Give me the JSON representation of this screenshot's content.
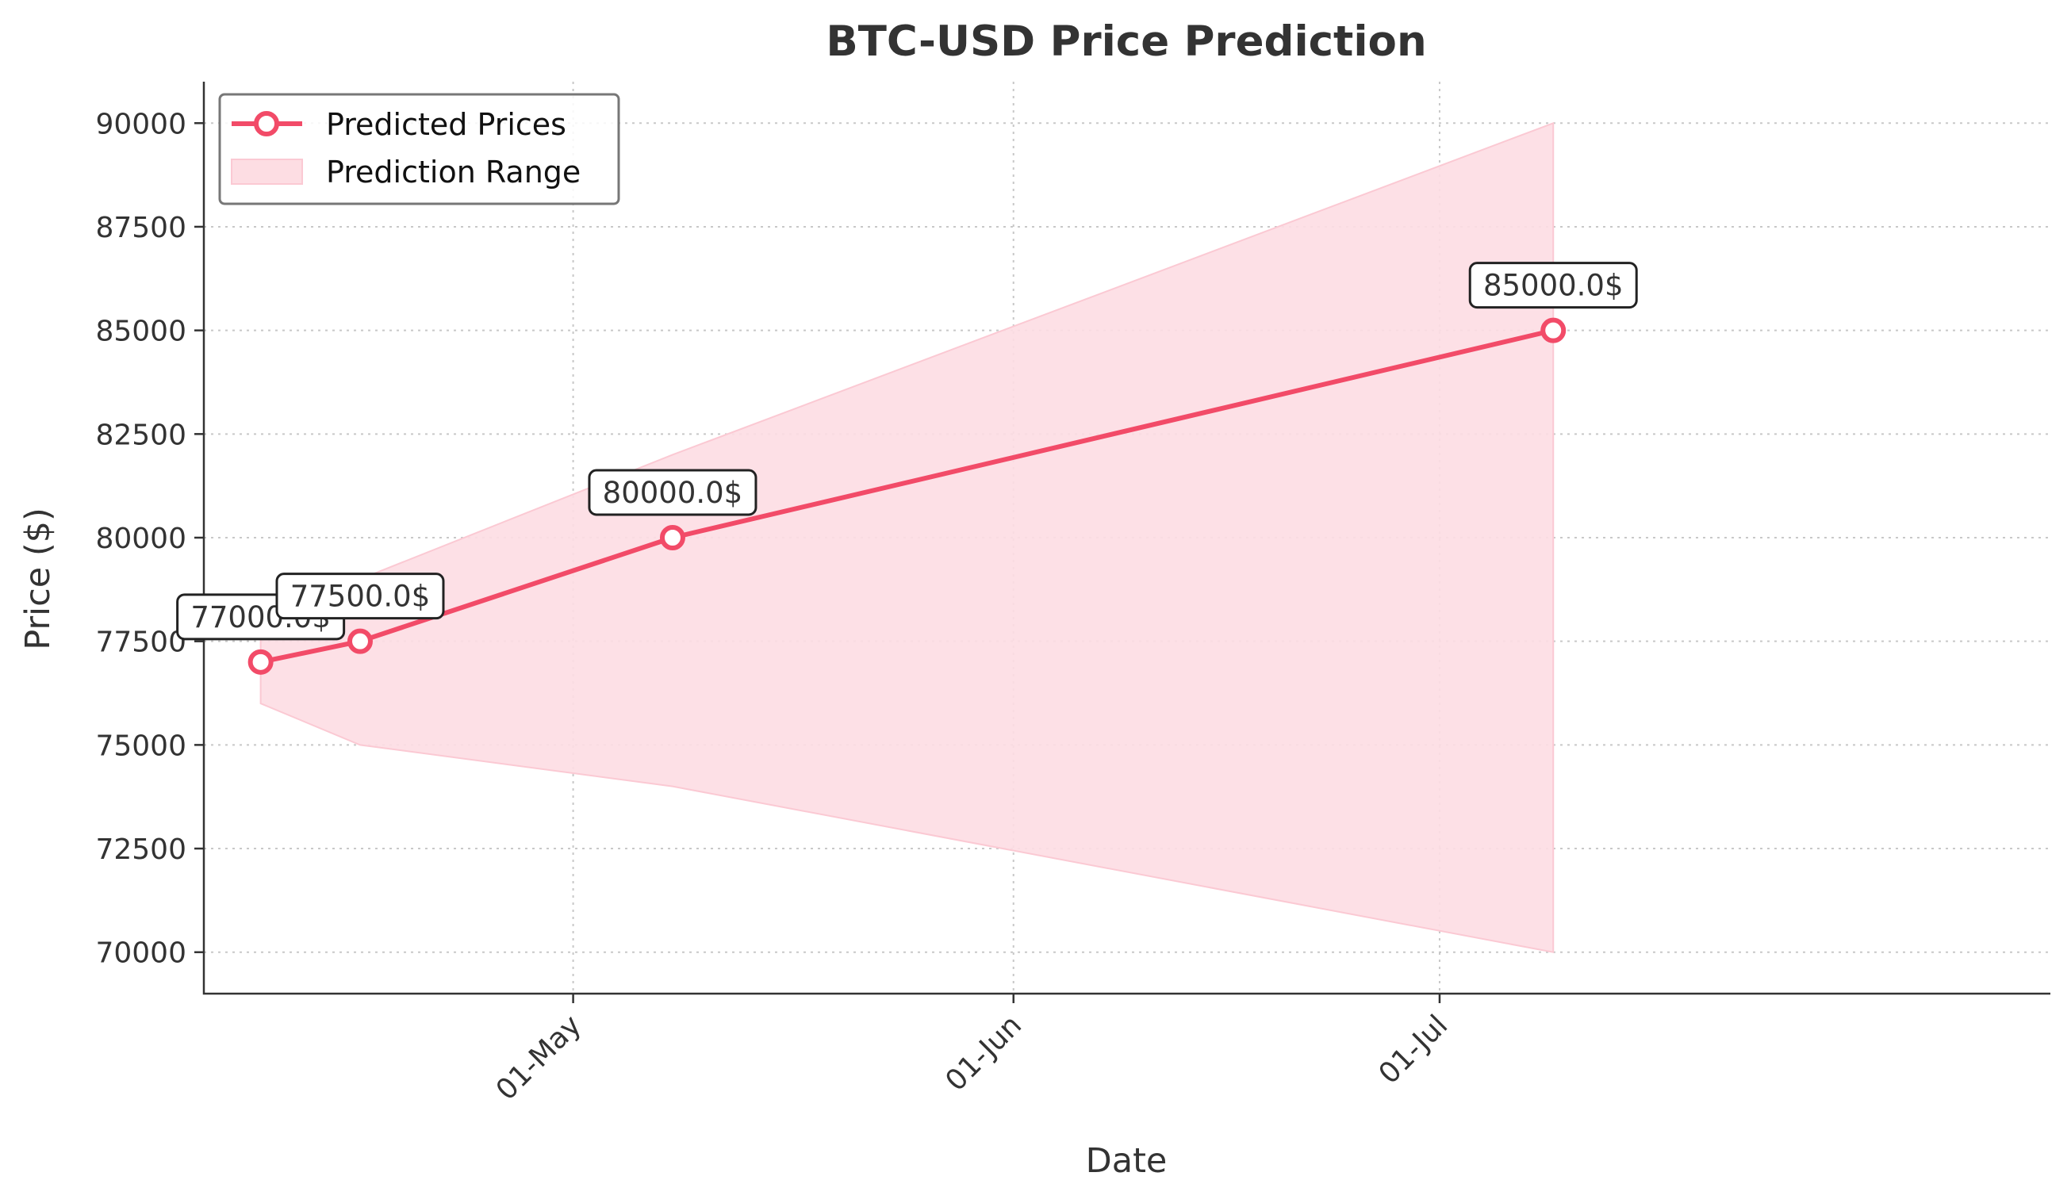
{
  "chart_data": {
    "type": "line",
    "title": "BTC-USD Price Prediction",
    "xlabel": "Date",
    "ylabel": "Price ($)",
    "x_ticks": [
      {
        "date": "2025-05-01",
        "label": "01-May"
      },
      {
        "date": "2025-06-01",
        "label": "01-Jun"
      },
      {
        "date": "2025-07-01",
        "label": "01-Jul"
      }
    ],
    "y_ticks": [
      70000,
      72500,
      75000,
      77500,
      80000,
      82500,
      85000,
      87500,
      90000
    ],
    "xlim": [
      "2025-04-05",
      "2025-08-13"
    ],
    "ylim": [
      69000,
      91000
    ],
    "grid": true,
    "legend_position": "top-left",
    "series": [
      {
        "name": "Predicted Prices",
        "color": "#f24b68",
        "points": [
          {
            "x": "2025-04-09",
            "y": 77000
          },
          {
            "x": "2025-04-16",
            "y": 77500
          },
          {
            "x": "2025-05-08",
            "y": 80000
          },
          {
            "x": "2025-07-09",
            "y": 85000
          }
        ]
      }
    ],
    "range": {
      "name": "Prediction Range",
      "color": "#fddde3",
      "points": [
        {
          "x": "2025-04-09",
          "low": 76000,
          "high": 78000
        },
        {
          "x": "2025-04-16",
          "low": 75000,
          "high": 79000
        },
        {
          "x": "2025-05-08",
          "low": 74000,
          "high": 82000
        },
        {
          "x": "2025-07-09",
          "low": 70000,
          "high": 90000
        }
      ]
    },
    "annotations": [
      "77000.0$",
      "77500.0$",
      "80000.0$",
      "85000.0$"
    ]
  }
}
